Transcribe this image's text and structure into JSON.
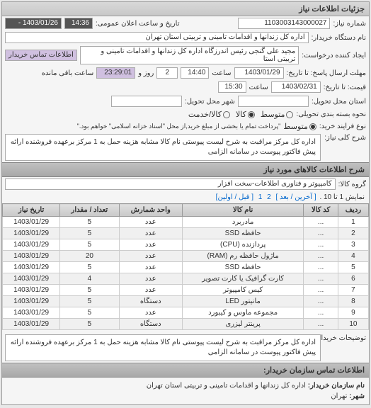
{
  "panel_title": "جزئیات اطلاعات نیاز",
  "header": {
    "req_no_label": "شماره نیاز:",
    "req_no": "1103003143000027",
    "announce_label": "تاریخ و ساعت اعلان عمومی:",
    "announce_time": "14:36",
    "announce_date": "1403/01/26 -",
    "buyer_label": "نام دستگاه خریدار:",
    "buyer": "اداره کل زندانها و اقدامات تامینی و تربیتی استان تهران",
    "requester_label": "ایجاد کننده درخواست:",
    "requester": "مجید علی گنجی رئیس اندرزگاه  اداره کل زندانها و اقدامات تامینی و تربیتی استا",
    "contact_btn": "اطلاعات تماس خریدار"
  },
  "deadlines": {
    "send_label": "مهلت ارسال پاسخ: تا تاریخ:",
    "send_date": "1403/01/29",
    "send_time_label": "ساعت",
    "send_time": "14:40",
    "remain_day": "2",
    "remain_day_label": "روز و",
    "remain_time": "23:29:01",
    "remain_suffix": "ساعت باقی مانده",
    "price_label": "قیمت: تا تاریخ:",
    "price_date": "1403/02/31",
    "price_time_label": "ساعت",
    "price_time": "15:30"
  },
  "delivery": {
    "place_label": "استان محل تحویل:",
    "city_label": "شهر محل تحویل:"
  },
  "package": {
    "label": "نحوه بسته بندی تحویلی:",
    "options": [
      "متوسط",
      "کالا",
      "کالا/خدمت"
    ],
    "checked": 1
  },
  "payment": {
    "label": "نوع فرایند خرید:",
    "options": [
      "متوسط"
    ],
    "note": "\"پرداخت تمام یا بخشی از مبلغ خرید,از محل \"اسناد خزانه اسلامی\" خواهم بود.\""
  },
  "main_desc": {
    "label": "شرح کلی نیاز:",
    "text": "اداره کل مرکز مراقبت به شرح لیست پیوستی نام کالا مشابه هزینه حمل به 1 مرکز برعهده فروشنده ارائه پیش فاکتور پیوست در سامانه الزامی"
  },
  "goods_section": "شرح اطلاعات کالاهای مورد نیاز",
  "goods_group_label": "گروه کالا:",
  "goods_group": "کامپیوتر و فناوری اطلاعات-سخت افزار",
  "pager": {
    "text_prefix": "نمایش 1 تا 10 .",
    "links": [
      "[ آخرین / بعد ]",
      "2",
      "1",
      "[ قبل / اولین]"
    ]
  },
  "table": {
    "cols": [
      "ردیف",
      "کد کالا",
      "نام کالا",
      "واحد شمارش",
      "تعداد / مقدار",
      "تاریخ نیاز"
    ],
    "rows": [
      [
        "1",
        "...",
        "مادربرد",
        "عدد",
        "5",
        "1403/01/29"
      ],
      [
        "2",
        "...",
        "حافظه SSD",
        "عدد",
        "5",
        "1403/01/29"
      ],
      [
        "3",
        "...",
        "پردازنده (CPU)",
        "عدد",
        "5",
        "1403/01/29"
      ],
      [
        "4",
        "...",
        "ماژول حافظه رم (RAM)",
        "عدد",
        "20",
        "1403/01/29"
      ],
      [
        "5",
        "...",
        "حافظه SSD",
        "عدد",
        "5",
        "1403/01/29"
      ],
      [
        "6",
        "...",
        "کارت گرافیک یا کارت تصویر",
        "عدد",
        "4",
        "1403/01/29"
      ],
      [
        "7",
        "...",
        "کیس کامپیوتر",
        "عدد",
        "5",
        "1403/01/29"
      ],
      [
        "8",
        "...",
        "مانیتور LED",
        "دستگاه",
        "5",
        "1403/01/29"
      ],
      [
        "9",
        "...",
        "مجموعه ماوس و کیبورد",
        "عدد",
        "5",
        "1403/01/29"
      ],
      [
        "10",
        "...",
        "پرینتر لیزری",
        "دستگاه",
        "5",
        "1403/01/29"
      ]
    ]
  },
  "buyer_notes": {
    "label": "توضیحات خریدار:",
    "text": "اداره کل مرکز مراقبت به شرح لیست پیوستی نام کالا مشابه هزینه حمل به 1 مرکز برعهده فروشنده ارائه پیش فاکتور پیوست در سامانه الزامی"
  },
  "contact_section": "اطلاعات تماس سازمان خریدار:",
  "footer": {
    "org_label": "نام سازمان خریدار:",
    "org": "اداره کل زندانها و اقدامات تامینی و تربیتی استان تهران",
    "city_label": "شهر:",
    "city": "تهران"
  }
}
